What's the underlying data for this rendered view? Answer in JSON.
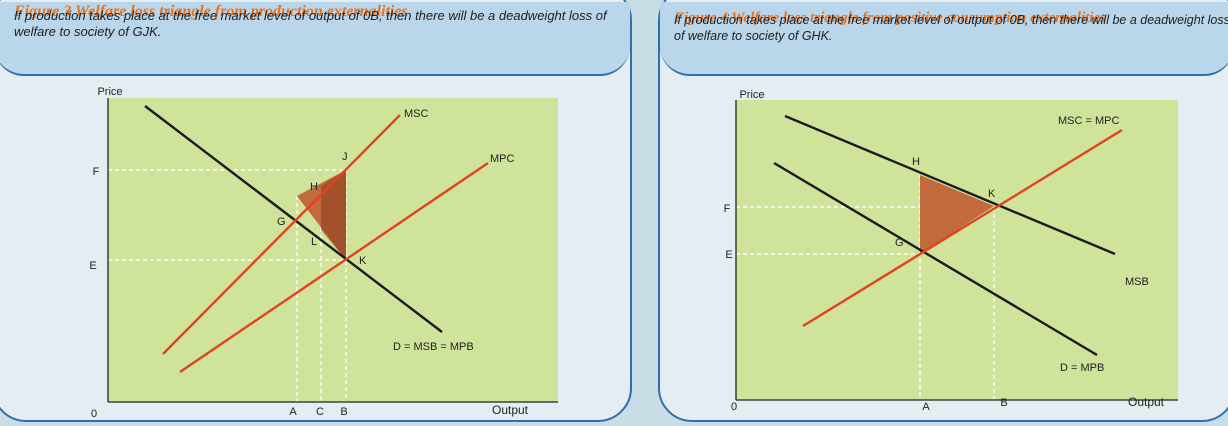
{
  "figure3": {
    "title": "Figure 3  Welfare loss triangle from production externalities",
    "description": "If production takes place at the free market level of output of 0B, then there will be a deadweight loss of welfare to society of GJK.",
    "y_axis_label": "Price",
    "x_axis_label": "Output",
    "origin": "0",
    "y_ticks": [
      "F",
      "E"
    ],
    "x_ticks": [
      "A",
      "C",
      "B"
    ],
    "curves": {
      "msc": "MSC",
      "mpc": "MPC",
      "demand": "D = MSB = MPB"
    },
    "points": {
      "j": "J",
      "h": "H",
      "g": "G",
      "l": "L",
      "k": "K"
    }
  },
  "figure4": {
    "title": "Figure 4  Welfare loss triangle from positive consumption externalities",
    "description": "If production takes place at the free market level of output of 0B, then there will be a deadweight loss of welfare to society of GHK.",
    "y_axis_label": "Price",
    "x_axis_label": "Output",
    "origin": "0",
    "y_ticks": [
      "F",
      "E"
    ],
    "x_ticks": [
      "A",
      "B"
    ],
    "curves": {
      "supply": "MSC = MPC",
      "msb": "MSB",
      "demand": "D = MPB"
    },
    "points": {
      "h": "H",
      "k": "K",
      "g": "G"
    }
  },
  "colors": {
    "plot_area": "#cfe39a",
    "curve_red": "#e2421f",
    "curve_black": "#1b1b1b",
    "triangle_fill": "#c26a3c",
    "triangle_dark": "#8a3a1e",
    "title_orange": "#e8731f",
    "frame_blue": "#2f6fae"
  }
}
